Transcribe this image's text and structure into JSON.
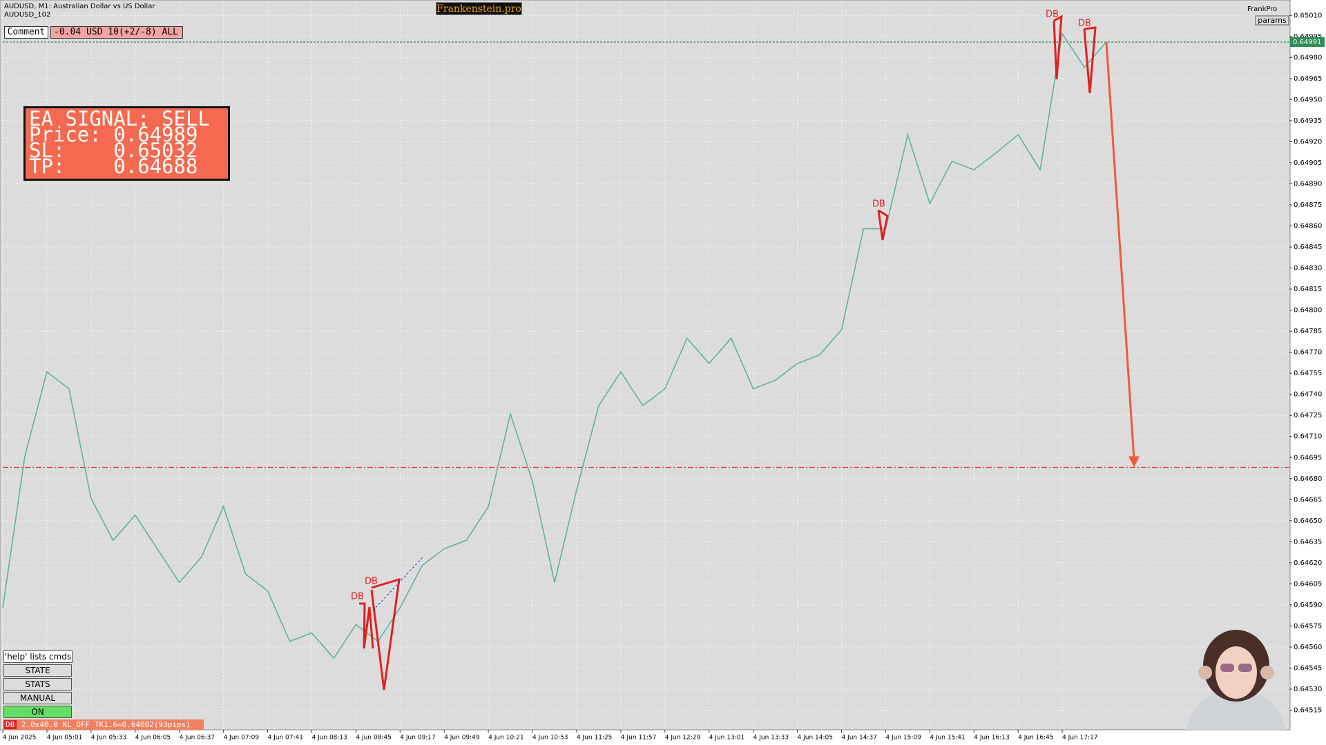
{
  "window": {
    "symbol_title": "AUDUSD, M1:  Australian Dollar vs US Dollar",
    "symbol_sub": "AUDUSD_102",
    "brand": "Frankenstein.pro",
    "frankpro": "FrankPro",
    "params": "params"
  },
  "comment": {
    "label": "Comment",
    "value": "-0.04 USD 10(+2/-8) ALL"
  },
  "signal": {
    "lines": [
      "EA SIGNAL: SELL",
      "Price: 0.64989",
      "SL:    0.65032",
      "TP:    0.64688"
    ]
  },
  "buttons": [
    "'help' lists cmds",
    "STATE",
    "STATS",
    "MANUAL",
    "ON"
  ],
  "status": {
    "tag": "DB",
    "text": "2.0x40.0 KL_OFF TK1.6=0.64082(93pips)"
  },
  "annotations": [
    "DB",
    "DB",
    "DB",
    "DB",
    "DB"
  ],
  "chart_data": {
    "type": "line",
    "color": "#5db3a3",
    "categories": [
      "4 Jun 2025",
      null,
      "4 Jun 05:01",
      null,
      "4 Jun 05:33",
      null,
      "4 Jun 06:05",
      null,
      "4 Jun 06:37",
      null,
      "4 Jun 07:09",
      null,
      "4 Jun 07:41",
      null,
      "4 Jun 08:13",
      null,
      "4 Jun 08:45",
      null,
      "4 Jun 09:17",
      null,
      "4 Jun 09:49",
      null,
      "4 Jun 10:21",
      null,
      "4 Jun 10:53",
      null,
      "4 Jun 11:25",
      null,
      "4 Jun 11:57",
      null,
      "4 Jun 12:29",
      null,
      "4 Jun 13:01",
      null,
      "4 Jun 13:33",
      null,
      "4 Jun 14:05",
      null,
      "4 Jun 14:37",
      null,
      "4 Jun 15:09",
      null,
      "4 Jun 15:41",
      null,
      "4 Jun 16:13",
      null,
      "4 Jun 16:45",
      null,
      "4 Jun 17:17",
      null,
      null
    ],
    "values": [
      0.64588,
      0.64696,
      0.64756,
      0.64744,
      0.64666,
      0.64636,
      0.64654,
      0.6463,
      0.64606,
      0.64624,
      0.6466,
      0.64612,
      0.646,
      0.64564,
      0.6457,
      0.64552,
      0.64576,
      0.64564,
      0.64588,
      0.64618,
      0.6463,
      0.64636,
      0.6466,
      0.64726,
      0.64678,
      0.64606,
      0.64672,
      0.64732,
      0.64756,
      0.64732,
      0.64744,
      0.6478,
      0.64762,
      0.6478,
      0.64744,
      0.6475,
      0.64762,
      0.64768,
      0.64786,
      0.64858,
      0.64858,
      0.64925,
      0.64876,
      0.64906,
      0.649,
      0.64912,
      0.64925,
      0.649,
      0.64997,
      0.64973,
      0.64991
    ],
    "ylim": [
      0.64501,
      0.65019
    ],
    "yticks": [
      {
        "value": 0.6501,
        "label": "0.65010"
      },
      0.64995,
      {
        "value": 0.6498,
        "label": "0.64980"
      },
      0.64965,
      {
        "value": 0.6495,
        "label": "0.64950"
      },
      0.64935,
      {
        "value": 0.6492,
        "label": "0.64920"
      },
      0.64905,
      {
        "value": 0.6489,
        "label": "0.64890"
      },
      0.64875,
      {
        "value": 0.6486,
        "label": "0.64860"
      },
      0.64845,
      {
        "value": 0.6483,
        "label": "0.64830"
      },
      0.64815,
      {
        "value": 0.648,
        "label": "0.64800"
      },
      0.64785,
      {
        "value": 0.6477,
        "label": "0.64770"
      },
      0.64755,
      {
        "value": 0.6474,
        "label": "0.64740"
      },
      0.64725,
      {
        "value": 0.6471,
        "label": "0.64710"
      },
      0.64695,
      {
        "value": 0.6468,
        "label": "0.64680"
      },
      0.64665,
      {
        "value": 0.6465,
        "label": "0.64650"
      },
      0.64635,
      {
        "value": 0.6462,
        "label": "0.64620"
      },
      0.64605,
      {
        "value": 0.6459,
        "label": "0.64590"
      },
      0.64575,
      {
        "value": 0.6456,
        "label": "0.64560"
      },
      0.64545,
      {
        "value": 0.6453,
        "label": "0.64530"
      },
      0.64515
    ],
    "levels": [
      {
        "value": 0.64991,
        "color": "#2e8b57"
      },
      {
        "value": 0.64688,
        "color": "#e03030"
      }
    ],
    "grid": true
  }
}
